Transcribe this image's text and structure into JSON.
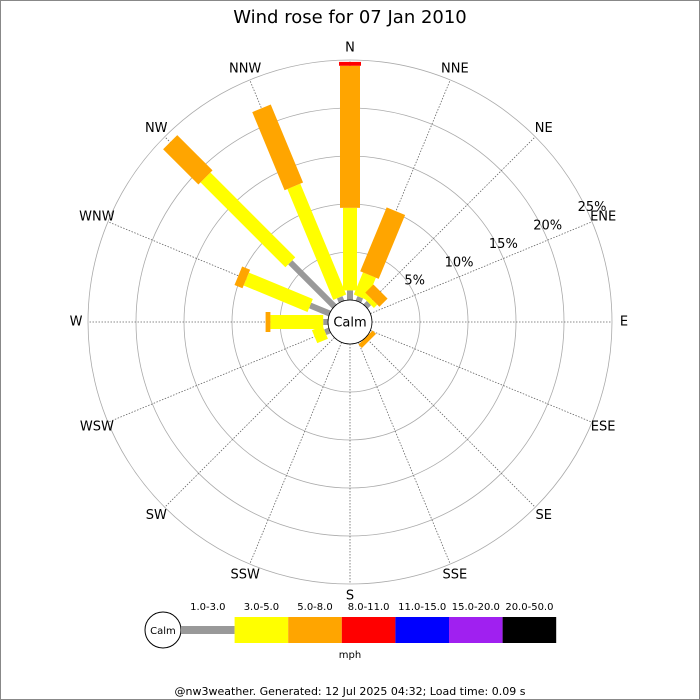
{
  "chart_data": {
    "type": "windrose",
    "title": "Wind rose for 07 Jan 2010",
    "categories": [
      "N",
      "NNE",
      "NE",
      "ENE",
      "E",
      "ESE",
      "SE",
      "SSE",
      "S",
      "SSW",
      "SW",
      "WSW",
      "W",
      "WNW",
      "NW",
      "NNW"
    ],
    "center_label": "Calm",
    "rlim": [
      0,
      25
    ],
    "rticks": [
      {
        "value": 5,
        "label": "5%"
      },
      {
        "value": 10,
        "label": "10%"
      },
      {
        "value": 15,
        "label": "15%"
      },
      {
        "value": 20,
        "label": "20%"
      },
      {
        "value": 25,
        "label": "25%"
      }
    ],
    "series": [
      {
        "name": "1.0-3.0",
        "color": "#999999",
        "values": [
          1.0,
          0.5,
          0.5,
          0,
          0,
          0,
          0,
          0,
          0,
          0,
          0,
          0.5,
          0.5,
          2.2,
          6.5,
          0.5
        ]
      },
      {
        "name": "3.0-5.0",
        "color": "#ffff00",
        "values": [
          8.6,
          2.5,
          0.5,
          0,
          0,
          0,
          0,
          0,
          0,
          0,
          0,
          1.2,
          5.5,
          7.2,
          12.5,
          12.5
        ]
      },
      {
        "name": "5.0-8.0",
        "color": "#ffa500",
        "values": [
          14.8,
          7.2,
          1.2,
          0,
          0,
          0,
          0.5,
          0,
          0,
          0,
          0,
          0,
          0.5,
          0.9,
          5.2,
          8.8
        ]
      },
      {
        "name": "8.0-11.0",
        "color": "#ff0000",
        "values": [
          0.4,
          0,
          0,
          0,
          0,
          0,
          0,
          0,
          0,
          0,
          0,
          0,
          0,
          0,
          0,
          0
        ]
      },
      {
        "name": "11.0-15.0",
        "color": "#0000ff",
        "values": [
          0,
          0,
          0,
          0,
          0,
          0,
          0,
          0,
          0,
          0,
          0,
          0,
          0,
          0,
          0,
          0
        ]
      },
      {
        "name": "15.0-20.0",
        "color": "#a020f0",
        "values": [
          0,
          0,
          0,
          0,
          0,
          0,
          0,
          0,
          0,
          0,
          0,
          0,
          0,
          0,
          0,
          0
        ]
      },
      {
        "name": "20.0-50.0",
        "color": "#000000",
        "values": [
          0,
          0,
          0,
          0,
          0,
          0,
          0,
          0,
          0,
          0,
          0,
          0,
          0,
          0,
          0,
          0
        ]
      }
    ],
    "legend_unit": "mph",
    "footer": "@nw3weather. Generated: 12 Jul 2025 04:32; Load time: 0.09 s"
  }
}
